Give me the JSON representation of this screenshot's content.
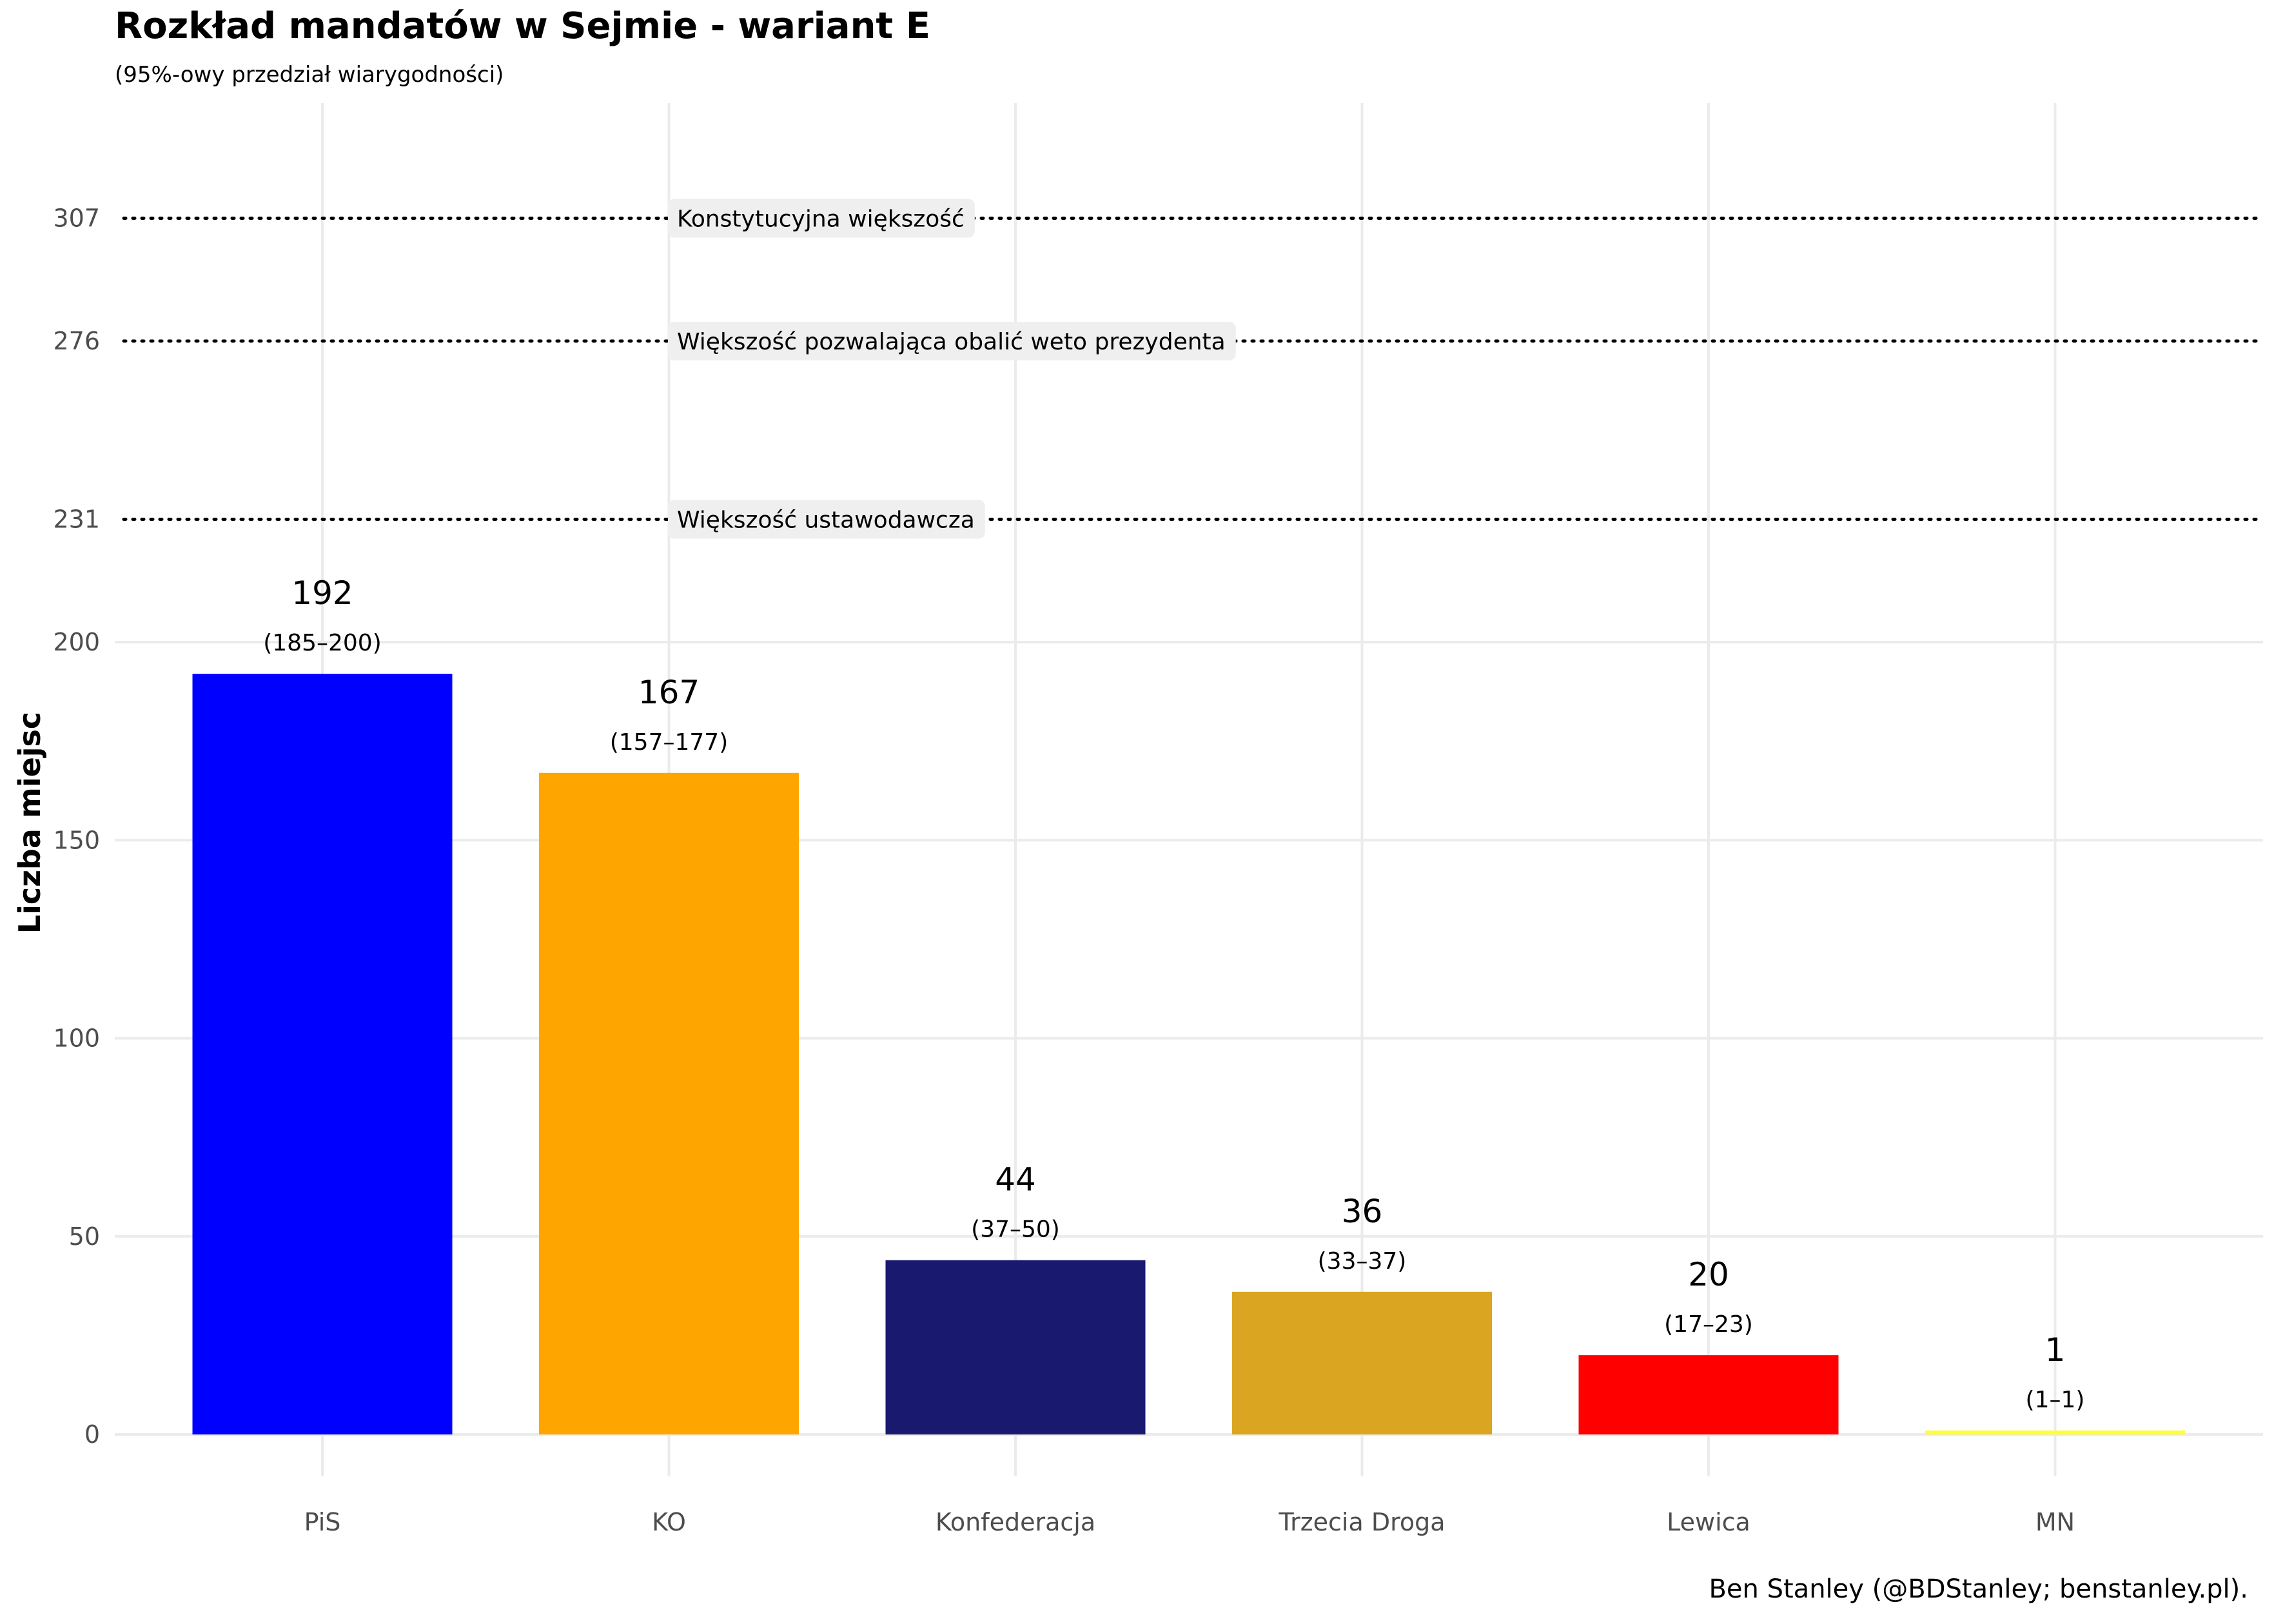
{
  "title": "Rozkład mandatów w Sejmie - wariant E",
  "subtitle": "(95%-owy przedział wiarygodności)",
  "caption": "Ben Stanley (@BDStanley; benstanley.pl).",
  "chart_data": {
    "type": "bar",
    "ylabel": "Liczba miejsc",
    "xlabel": "",
    "categories": [
      "PiS",
      "KO",
      "Konfederacja",
      "Trzecia Droga",
      "Lewica",
      "MN"
    ],
    "values": [
      192,
      167,
      44,
      36,
      20,
      1
    ],
    "intervals": [
      "(185–200)",
      "(157–177)",
      "(37–50)",
      "(33–37)",
      "(17–23)",
      "(1–1)"
    ],
    "colors": [
      "#0000ff",
      "#ffa500",
      "#191970",
      "#daa520",
      "#ff0000",
      "#ffff33"
    ],
    "ylim": [
      0,
      335
    ],
    "yticks": [
      0,
      50,
      100,
      150,
      200,
      231,
      276,
      307
    ],
    "grid": true,
    "reference_lines": [
      {
        "value": 307,
        "label": "Konstytucyjna większość"
      },
      {
        "value": 276,
        "label": "Większość pozwalająca obalić weto prezydenta"
      },
      {
        "value": 231,
        "label": "Większość ustawodawcza"
      }
    ]
  }
}
